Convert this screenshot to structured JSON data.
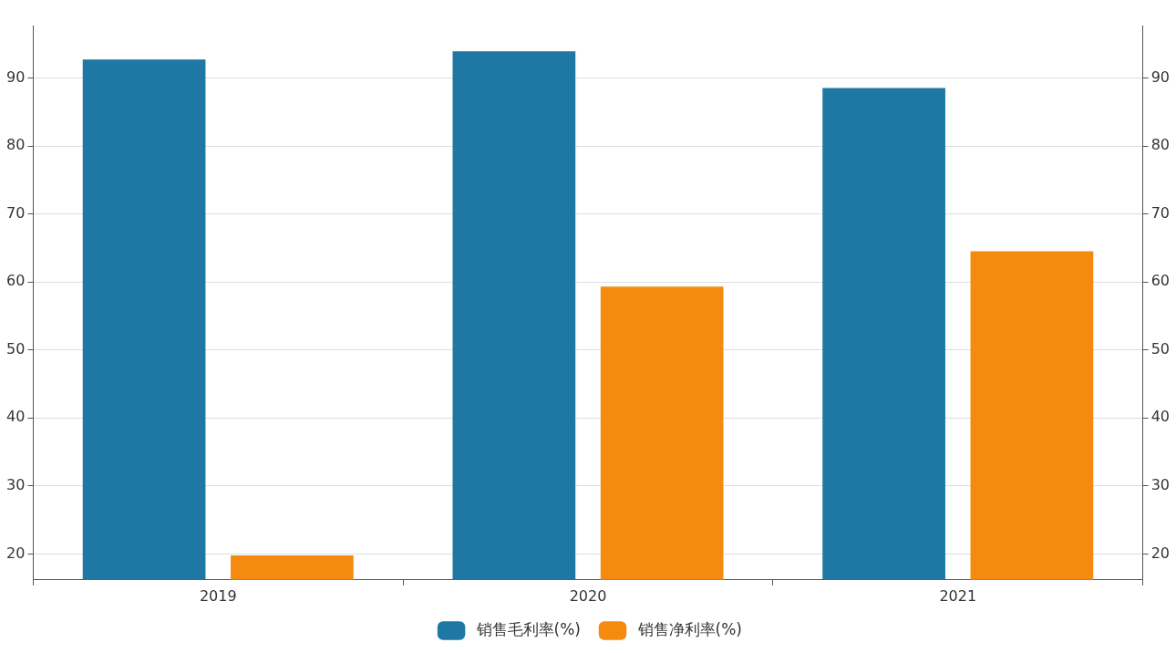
{
  "chart_data": {
    "type": "bar",
    "categories": [
      "2019",
      "2020",
      "2021"
    ],
    "series": [
      {
        "name": "销售毛利率(%)",
        "color": "#1f78a4",
        "values": [
          92.7,
          93.9,
          88.5
        ]
      },
      {
        "name": "销售净利率(%)",
        "color": "#f58a10",
        "values": [
          19.8,
          59.3,
          64.5
        ]
      }
    ],
    "ylim": [
      16.2,
      97.7
    ],
    "yticks": [
      20,
      30,
      40,
      50,
      60,
      70,
      80,
      90
    ],
    "y2lim": [
      16.2,
      97.7
    ],
    "y2ticks": [
      20,
      30,
      40,
      50,
      60,
      70,
      80,
      90
    ],
    "grid": true,
    "legend": "bottom"
  }
}
